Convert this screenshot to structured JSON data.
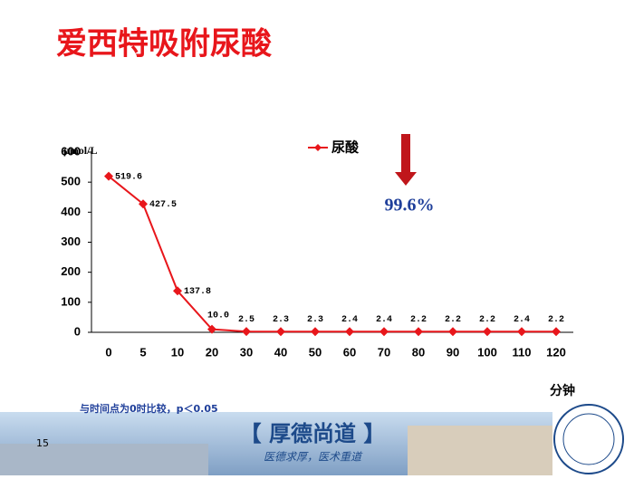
{
  "title": "爱西特吸附尿酸",
  "chart_data": {
    "type": "line",
    "y_unit": "μmol/L",
    "x_label": "分钟",
    "categories": [
      "0",
      "5",
      "10",
      "20",
      "30",
      "40",
      "50",
      "60",
      "70",
      "80",
      "90",
      "100",
      "110",
      "120"
    ],
    "series": [
      {
        "name": "尿酸",
        "color": "#e8161b",
        "values": [
          519.6,
          427.5,
          137.8,
          10.0,
          2.5,
          2.3,
          2.3,
          2.4,
          2.4,
          2.2,
          2.2,
          2.2,
          2.4,
          2.2
        ],
        "value_labels": [
          "519.6",
          "427.5",
          "137.8",
          "10.0",
          "2.5",
          "2.3",
          "2.3",
          "2.4",
          "2.4",
          "2.2",
          "2.2",
          "2.2",
          "2.4",
          "2.2"
        ]
      }
    ],
    "ylim": [
      0,
      600
    ],
    "yticks": [
      0,
      100,
      200,
      300,
      400,
      500,
      600
    ],
    "annotation": "99.6%",
    "grid": false
  },
  "footnote": "与时间点为0时比较，p＜0.05",
  "page_number": "15",
  "banner": {
    "motto": "【 厚德尚道 】",
    "slogan": "医德求厚，医术重道"
  }
}
